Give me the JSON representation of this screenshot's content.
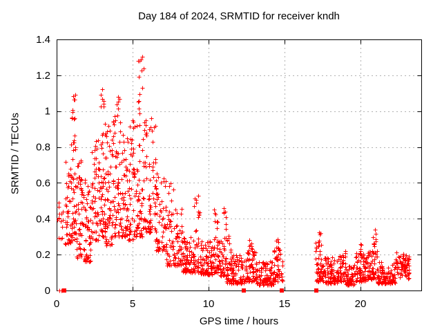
{
  "chart_data": {
    "type": "scatter",
    "title": "Day 184 of 2024, SRMTID for receiver kndh",
    "xlabel": "GPS time / hours",
    "ylabel": "SRMTID / TECUs",
    "xlim": [
      0,
      24
    ],
    "ylim": [
      0,
      1.4
    ],
    "xticks": [
      0,
      5,
      10,
      15,
      20
    ],
    "xtick_labels": [
      "0",
      "5",
      "10",
      "15",
      "20"
    ],
    "yticks": [
      0,
      0.2,
      0.4,
      0.6,
      0.8,
      1.0,
      1.2,
      1.4
    ],
    "ytick_labels": [
      "0",
      "0.2",
      "0.4",
      "0.6",
      "0.8",
      "1",
      "1.2",
      "1.4"
    ],
    "grid": true,
    "legend": "none",
    "series_name": "SRMTID",
    "marker": {
      "shape": "plus",
      "color": "#ff0000",
      "size": 7
    },
    "axis_square_marker": {
      "shape": "filled-square",
      "color": "#ff0000",
      "size": 6
    },
    "zero_squares_x": [
      0.5,
      12.3,
      14.8,
      17.1
    ],
    "zero_plus_x": [
      0.2,
      0.3
    ],
    "data_gaps_hours": [
      [
        14.9,
        17.05
      ],
      [
        23.2,
        24
      ]
    ],
    "max_point": {
      "x": 5.5,
      "y": 1.35
    },
    "seed": 42,
    "cluster_fields": [
      "x_start",
      "x_end",
      "count",
      "y_min",
      "y_max",
      "distribution"
    ],
    "point_clusters": [
      [
        0.05,
        0.45,
        14,
        0.28,
        0.52,
        "uniform"
      ],
      [
        0.55,
        0.95,
        40,
        0.26,
        0.72,
        "low"
      ],
      [
        0.9,
        1.3,
        52,
        0.28,
        0.97,
        "low"
      ],
      [
        1.0,
        1.25,
        7,
        0.95,
        1.11,
        "uniform"
      ],
      [
        1.3,
        1.8,
        55,
        0.18,
        0.75,
        "low"
      ],
      [
        1.8,
        2.3,
        55,
        0.16,
        0.62,
        "low"
      ],
      [
        2.3,
        2.75,
        50,
        0.28,
        0.86,
        "low"
      ],
      [
        2.75,
        3.2,
        60,
        0.3,
        1.0,
        "low"
      ],
      [
        2.9,
        3.2,
        7,
        1.0,
        1.2,
        "uniform"
      ],
      [
        3.2,
        3.7,
        58,
        0.25,
        0.92,
        "low"
      ],
      [
        3.7,
        4.2,
        60,
        0.3,
        1.0,
        "low"
      ],
      [
        3.9,
        4.15,
        6,
        0.95,
        1.08,
        "uniform"
      ],
      [
        4.2,
        4.7,
        55,
        0.3,
        0.87,
        "low"
      ],
      [
        4.7,
        5.15,
        50,
        0.28,
        0.95,
        "low"
      ],
      [
        5.15,
        5.8,
        62,
        0.3,
        1.02,
        "low"
      ],
      [
        5.35,
        5.75,
        11,
        1.04,
        1.35,
        "uniform"
      ],
      [
        5.8,
        6.5,
        65,
        0.32,
        0.96,
        "low"
      ],
      [
        6.5,
        7.2,
        65,
        0.22,
        0.66,
        "low"
      ],
      [
        7.2,
        8.3,
        90,
        0.14,
        0.46,
        "low"
      ],
      [
        7.35,
        7.7,
        5,
        0.45,
        0.62,
        "uniform"
      ],
      [
        8.3,
        9.35,
        95,
        0.1,
        0.3,
        "low"
      ],
      [
        9.05,
        9.45,
        13,
        0.3,
        0.53,
        "uniform"
      ],
      [
        9.45,
        10.25,
        80,
        0.09,
        0.28,
        "low"
      ],
      [
        10.3,
        10.7,
        40,
        0.1,
        0.3,
        "low"
      ],
      [
        10.35,
        10.6,
        9,
        0.28,
        0.46,
        "uniform"
      ],
      [
        10.7,
        11.15,
        40,
        0.08,
        0.28,
        "low"
      ],
      [
        10.95,
        11.15,
        9,
        0.28,
        0.5,
        "uniform"
      ],
      [
        11.15,
        12.35,
        110,
        0.04,
        0.2,
        "low"
      ],
      [
        11.2,
        11.5,
        7,
        0.2,
        0.32,
        "uniform"
      ],
      [
        12.4,
        13.15,
        70,
        0.05,
        0.22,
        "low"
      ],
      [
        12.6,
        12.95,
        10,
        0.2,
        0.31,
        "uniform"
      ],
      [
        13.15,
        14.3,
        100,
        0.03,
        0.17,
        "low"
      ],
      [
        14.3,
        14.85,
        45,
        0.05,
        0.25,
        "low"
      ],
      [
        14.45,
        14.65,
        5,
        0.22,
        0.3,
        "uniform"
      ],
      [
        17.05,
        17.45,
        42,
        0.05,
        0.28,
        "low"
      ],
      [
        17.15,
        17.35,
        6,
        0.26,
        0.34,
        "uniform"
      ],
      [
        17.45,
        18.6,
        95,
        0.04,
        0.19,
        "low"
      ],
      [
        18.6,
        19.05,
        40,
        0.05,
        0.22,
        "low"
      ],
      [
        19.05,
        19.65,
        50,
        0.03,
        0.15,
        "low"
      ],
      [
        19.65,
        20.4,
        70,
        0.05,
        0.21,
        "low"
      ],
      [
        19.9,
        20.1,
        5,
        0.19,
        0.26,
        "uniform"
      ],
      [
        20.4,
        21.1,
        58,
        0.06,
        0.22,
        "low"
      ],
      [
        20.75,
        21.05,
        12,
        0.2,
        0.35,
        "uniform"
      ],
      [
        21.1,
        22.3,
        95,
        0.04,
        0.16,
        "low"
      ],
      [
        22.3,
        23.2,
        78,
        0.06,
        0.22,
        "mid"
      ]
    ]
  },
  "colors": {
    "marker": "#ff0000",
    "grid": "#b0b0b0",
    "axis": "#000000",
    "text": "#000000",
    "background": "#ffffff"
  }
}
